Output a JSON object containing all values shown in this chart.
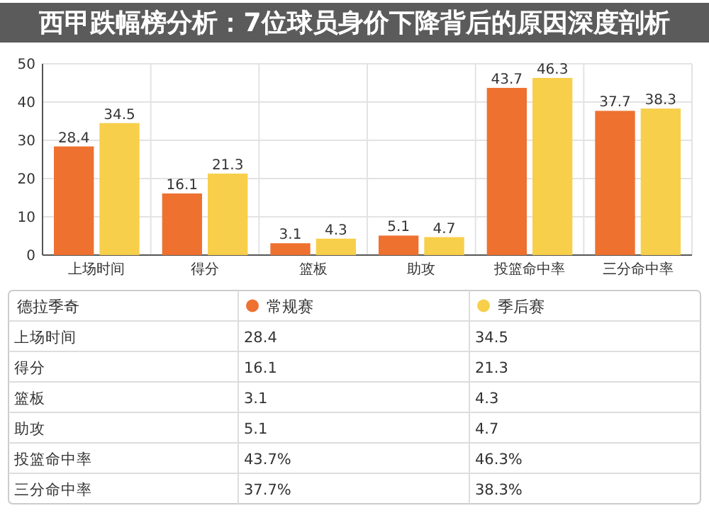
{
  "chart_data": {
    "type": "bar",
    "title": "西甲跌幅榜分析：7位球员身价下降背后的原因深度剖析",
    "legend_title": "德拉季奇",
    "categories": [
      "上场时间",
      "得分",
      "篮板",
      "助攻",
      "投篮命中率",
      "三分命中率"
    ],
    "series": [
      {
        "name": "常规赛",
        "color": "#ee7130",
        "values": [
          28.4,
          16.1,
          3.1,
          5.1,
          43.7,
          37.7
        ]
      },
      {
        "name": "季后赛",
        "color": "#f7cf4a",
        "values": [
          34.5,
          21.3,
          4.3,
          4.7,
          46.3,
          38.3
        ]
      }
    ],
    "annotations": [
      "28.4",
      "34.5",
      "16.1",
      "21.3",
      "3.1",
      "4.3",
      "5.1",
      "4.7",
      "43.7%",
      "46.3%",
      "37.7%",
      "38.3%"
    ],
    "ylim": [
      0,
      50
    ],
    "yticks": [
      0,
      10,
      20,
      30,
      40,
      50
    ],
    "grid": true,
    "legend": "bottom",
    "data_labels": true
  }
}
